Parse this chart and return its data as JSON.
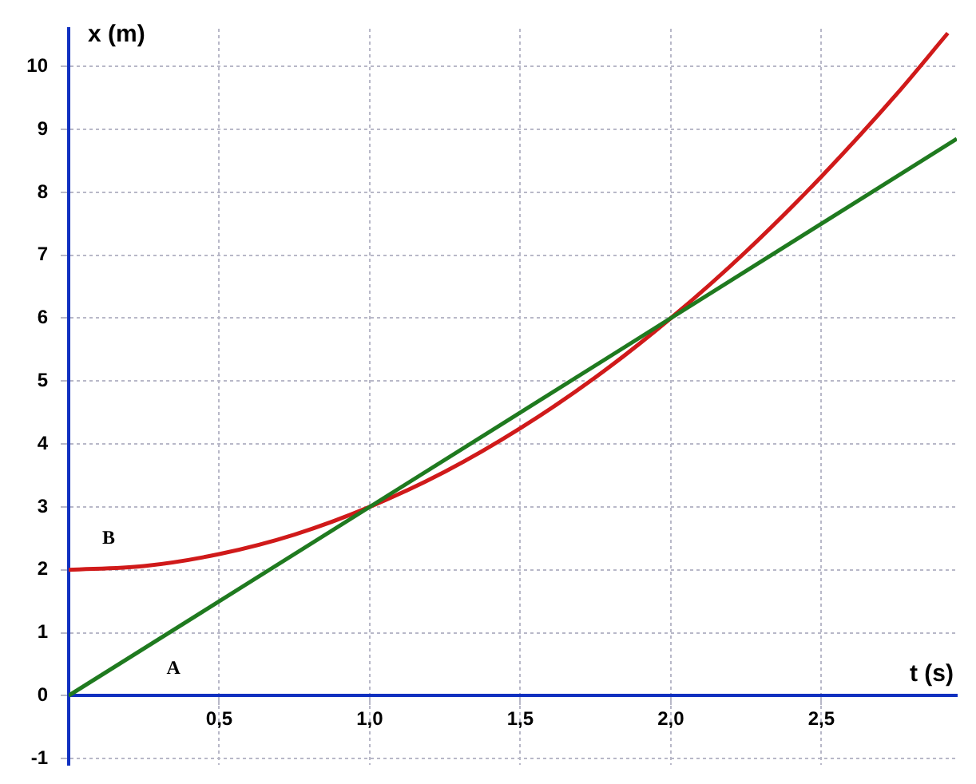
{
  "chart_data": {
    "type": "line",
    "xlabel": "t (s)",
    "ylabel": "x (m)",
    "series": [
      {
        "name": "A",
        "color": "#1f7a1f",
        "x": [
          0,
          2.95
        ],
        "values": [
          0,
          8.85
        ]
      },
      {
        "name": "B",
        "color": "#d01a1a",
        "x": [
          0,
          0.25,
          0.5,
          0.75,
          1,
          1.25,
          1.5,
          1.75,
          2,
          2.25,
          2.5,
          2.75,
          2.92
        ],
        "values": [
          2,
          2.06,
          2.25,
          2.56,
          3,
          3.56,
          4.25,
          5.06,
          6,
          7.06,
          8.25,
          9.56,
          10.53
        ]
      }
    ],
    "xlim": [
      0,
      2.95
    ],
    "xticks": [
      {
        "value": 0.5,
        "label": "0,5"
      },
      {
        "value": 1,
        "label": "1,0"
      },
      {
        "value": 1.5,
        "label": "1,5"
      },
      {
        "value": 2,
        "label": "2,0"
      },
      {
        "value": 2.5,
        "label": "2,5"
      }
    ],
    "ylim": [
      -1.1,
      10.6
    ],
    "yticks": [
      -1,
      0,
      1,
      2,
      3,
      4,
      5,
      6,
      7,
      8,
      9,
      10
    ],
    "grid": true,
    "legend": false,
    "marker": "none",
    "line_style": "solid"
  }
}
